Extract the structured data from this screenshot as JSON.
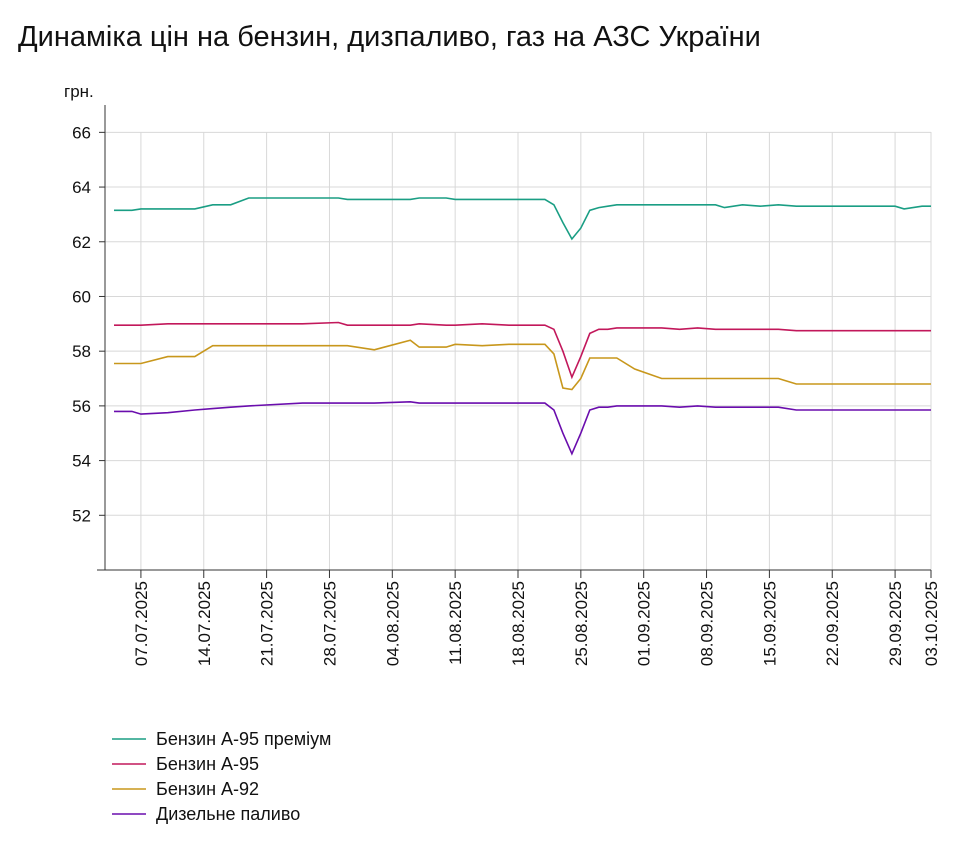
{
  "chart_data": {
    "type": "line",
    "title": "Динаміка цін на бензин, дизпаливо, газ на АЗС України",
    "y_label": "грн.",
    "x": [
      "04.07.2025",
      "06.07.2025",
      "07.07.2025",
      "10.07.2025",
      "13.07.2025",
      "15.07.2025",
      "17.07.2025",
      "19.07.2025",
      "25.07.2025",
      "29.07.2025",
      "30.07.2025",
      "02.08.2025",
      "06.08.2025",
      "07.08.2025",
      "10.08.2025",
      "11.08.2025",
      "14.08.2025",
      "17.08.2025",
      "21.08.2025",
      "22.08.2025",
      "23.08.2025",
      "24.08.2025",
      "25.08.2025",
      "26.08.2025",
      "27.08.2025",
      "28.08.2025",
      "29.08.2025",
      "31.08.2025",
      "03.09.2025",
      "05.09.2025",
      "07.09.2025",
      "09.09.2025",
      "10.09.2025",
      "12.09.2025",
      "14.09.2025",
      "16.09.2025",
      "18.09.2025",
      "22.09.2025",
      "27.09.2025",
      "29.09.2025",
      "30.09.2025",
      "02.10.2025",
      "03.10.2025"
    ],
    "series": [
      {
        "name": "Бензин А-95 преміум",
        "color": "#1a9e84",
        "values": [
          63.15,
          63.15,
          63.2,
          63.2,
          63.2,
          63.35,
          63.35,
          63.6,
          63.6,
          63.6,
          63.55,
          63.55,
          63.55,
          63.6,
          63.6,
          63.55,
          63.55,
          63.55,
          63.55,
          63.35,
          62.7,
          62.1,
          62.5,
          63.15,
          63.25,
          63.3,
          63.35,
          63.35,
          63.35,
          63.35,
          63.35,
          63.35,
          63.25,
          63.35,
          63.3,
          63.35,
          63.3,
          63.3,
          63.3,
          63.3,
          63.2,
          63.3,
          63.3
        ]
      },
      {
        "name": "Бензин А-95",
        "color": "#c2185b",
        "values": [
          58.95,
          58.95,
          58.95,
          59.0,
          59.0,
          59.0,
          59.0,
          59.0,
          59.0,
          59.05,
          58.95,
          58.95,
          58.95,
          59.0,
          58.95,
          58.95,
          59.0,
          58.95,
          58.95,
          58.8,
          58.0,
          57.05,
          57.8,
          58.65,
          58.8,
          58.8,
          58.85,
          58.85,
          58.85,
          58.8,
          58.85,
          58.8,
          58.8,
          58.8,
          58.8,
          58.8,
          58.75,
          58.75,
          58.75,
          58.75,
          58.75,
          58.75,
          58.75
        ]
      },
      {
        "name": "Бензин А-92",
        "color": "#c8971c",
        "values": [
          57.55,
          57.55,
          57.55,
          57.8,
          57.8,
          58.2,
          58.2,
          58.2,
          58.2,
          58.2,
          58.2,
          58.05,
          58.4,
          58.15,
          58.15,
          58.25,
          58.2,
          58.25,
          58.25,
          57.9,
          56.65,
          56.6,
          57.0,
          57.75,
          57.75,
          57.75,
          57.75,
          57.35,
          57.0,
          57.0,
          57.0,
          57.0,
          57.0,
          57.0,
          57.0,
          57.0,
          56.8,
          56.8,
          56.8,
          56.8,
          56.8,
          56.8,
          56.8
        ]
      },
      {
        "name": "Дизельне паливо",
        "color": "#6a0dad",
        "values": [
          55.8,
          55.8,
          55.7,
          55.75,
          55.85,
          55.9,
          55.95,
          56.0,
          56.1,
          56.1,
          56.1,
          56.1,
          56.15,
          56.1,
          56.1,
          56.1,
          56.1,
          56.1,
          56.1,
          55.85,
          55.0,
          54.25,
          55.0,
          55.85,
          55.95,
          55.95,
          56.0,
          56.0,
          56.0,
          55.95,
          56.0,
          55.95,
          55.95,
          55.95,
          55.95,
          55.95,
          55.85,
          55.85,
          55.85,
          55.85,
          55.85,
          55.85,
          55.85
        ]
      }
    ],
    "xlim": [
      "03.07.2025",
      "03.10.2025"
    ],
    "xticks": [
      "07.07.2025",
      "14.07.2025",
      "21.07.2025",
      "28.07.2025",
      "04.08.2025",
      "11.08.2025",
      "18.08.2025",
      "25.08.2025",
      "01.09.2025",
      "08.09.2025",
      "15.09.2025",
      "22.09.2025",
      "29.09.2025",
      "03.10.2025"
    ],
    "ylim": [
      50,
      67
    ],
    "yticks": [
      52,
      54,
      56,
      58,
      60,
      62,
      64,
      66
    ],
    "grid": true,
    "legend": "bottom"
  }
}
